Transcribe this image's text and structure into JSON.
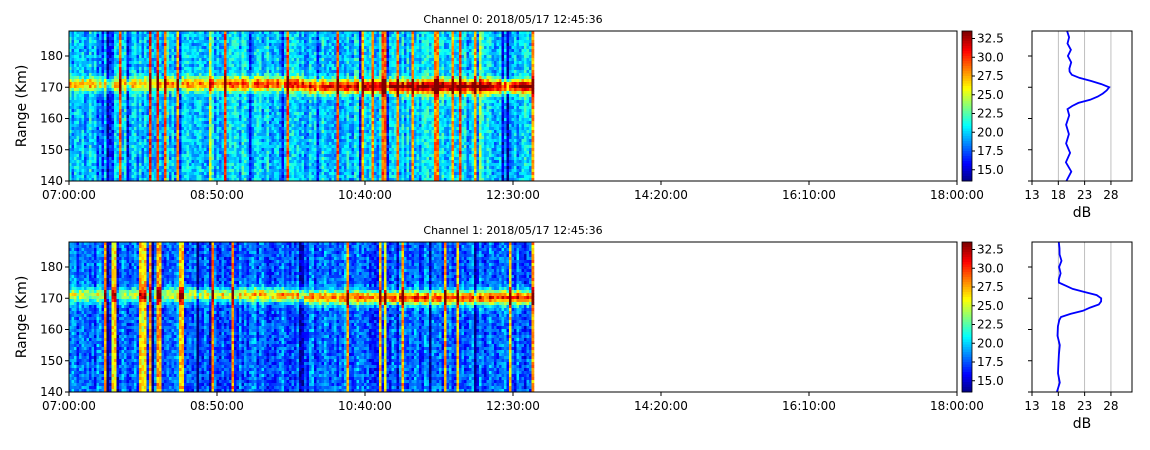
{
  "chart_data": [
    {
      "type": "heatmap",
      "title": "Channel 0: 2018/05/17 12:45:36",
      "ylabel": "Range (Km)",
      "xlim_minutes": [
        420,
        1080
      ],
      "ylim": [
        140,
        188
      ],
      "x_ticks": [
        "07:00:00",
        "08:50:00",
        "10:40:00",
        "12:30:00",
        "14:20:00",
        "16:10:00",
        "18:00:00"
      ],
      "y_ticks": [
        140,
        150,
        160,
        170,
        180
      ],
      "data_end_minutes": 766,
      "band": {
        "center_km": 171,
        "peak_db": 33,
        "floor_db": 20
      },
      "colorbar": {
        "min": 13.5,
        "max": 33.5,
        "ticks": [
          "15.0",
          "17.5",
          "20.0",
          "22.5",
          "25.0",
          "27.5",
          "30.0",
          "32.5"
        ],
        "colormap": "jet"
      },
      "profile": {
        "xlabel": "dB",
        "xlim": [
          13,
          32
        ],
        "x_ticks": [
          13,
          18,
          23,
          28
        ],
        "range_km": [
          140,
          143,
          146,
          149,
          152,
          155,
          158,
          161,
          163,
          164,
          165,
          166,
          167,
          168,
          169,
          170,
          171,
          172,
          173,
          174,
          175,
          176,
          178,
          180,
          182,
          184,
          186,
          188
        ],
        "db": [
          19.8,
          20.2,
          19.6,
          20.1,
          19.7,
          20.0,
          19.5,
          19.9,
          19.8,
          20.6,
          21.8,
          23.8,
          25.5,
          26.6,
          27.2,
          27.5,
          26.2,
          24.2,
          22.0,
          20.5,
          20.0,
          19.9,
          20.3,
          19.7,
          20.2,
          19.8,
          20.1,
          19.9
        ],
        "color": "#0000ff"
      }
    },
    {
      "type": "heatmap",
      "title": "Channel 1: 2018/05/17 12:45:36",
      "ylabel": "Range (Km)",
      "xlim_minutes": [
        420,
        1080
      ],
      "ylim": [
        140,
        188
      ],
      "x_ticks": [
        "07:00:00",
        "08:50:00",
        "10:40:00",
        "12:30:00",
        "14:20:00",
        "16:10:00",
        "18:00:00"
      ],
      "y_ticks": [
        140,
        150,
        160,
        170,
        180
      ],
      "data_end_minutes": 766,
      "band": {
        "center_km": 171,
        "peak_db": 30,
        "floor_db": 18
      },
      "colorbar": {
        "min": 13.5,
        "max": 33.5,
        "ticks": [
          "15.0",
          "17.5",
          "20.0",
          "22.5",
          "25.0",
          "27.5",
          "30.0",
          "32.5"
        ],
        "colormap": "jet"
      },
      "profile": {
        "xlabel": "dB",
        "xlim": [
          13,
          32
        ],
        "x_ticks": [
          13,
          18,
          23,
          28
        ],
        "range_km": [
          140,
          143,
          146,
          149,
          152,
          155,
          158,
          161,
          163,
          164,
          165,
          166,
          167,
          168,
          169,
          170,
          171,
          172,
          173,
          174,
          175,
          176,
          178,
          180,
          182,
          184,
          186,
          188
        ],
        "db": [
          18.0,
          18.3,
          17.9,
          18.2,
          18.0,
          18.1,
          17.8,
          18.2,
          18.0,
          18.8,
          20.2,
          22.4,
          24.3,
          25.6,
          26.2,
          26.4,
          25.2,
          23.2,
          20.8,
          19.2,
          18.4,
          18.2,
          18.6,
          18.1,
          18.4,
          18.0,
          18.3,
          18.1
        ],
        "color": "#0000ff"
      }
    }
  ]
}
